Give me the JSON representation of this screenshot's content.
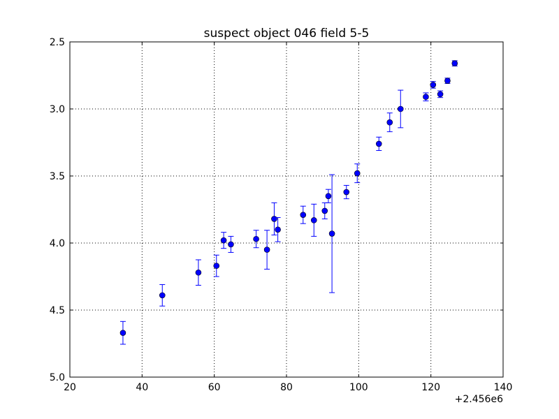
{
  "chart_data": {
    "type": "scatter",
    "title": "suspect object 046 field 5-5",
    "xlabel": "",
    "ylabel": "",
    "x_offset_label": "+2.456e6",
    "xlim": [
      20,
      140
    ],
    "ylim": [
      2.5,
      5.0
    ],
    "y_inverted": true,
    "grid": true,
    "x_ticks": [
      20,
      40,
      60,
      80,
      100,
      120,
      140
    ],
    "x_tick_labels": [
      "20",
      "40",
      "60",
      "80",
      "100",
      "120",
      "140"
    ],
    "y_ticks": [
      2.5,
      3.0,
      3.5,
      4.0,
      4.5,
      5.0
    ],
    "y_tick_labels": [
      "2.5",
      "3.0",
      "3.5",
      "4.0",
      "4.5",
      "5.0"
    ],
    "marker_color": "#0000ff",
    "points": [
      {
        "x": 34.7,
        "y": 4.67,
        "err": 0.085
      },
      {
        "x": 45.6,
        "y": 4.39,
        "err": 0.08
      },
      {
        "x": 55.6,
        "y": 4.22,
        "err": 0.095
      },
      {
        "x": 60.6,
        "y": 4.17,
        "err": 0.08
      },
      {
        "x": 62.6,
        "y": 3.98,
        "err": 0.06
      },
      {
        "x": 64.6,
        "y": 4.01,
        "err": 0.06
      },
      {
        "x": 71.6,
        "y": 3.97,
        "err": 0.065
      },
      {
        "x": 74.6,
        "y": 4.05,
        "err": 0.145
      },
      {
        "x": 76.6,
        "y": 3.82,
        "err": 0.12
      },
      {
        "x": 77.6,
        "y": 3.9,
        "err": 0.09
      },
      {
        "x": 84.6,
        "y": 3.79,
        "err": 0.065
      },
      {
        "x": 87.6,
        "y": 3.83,
        "err": 0.12
      },
      {
        "x": 90.6,
        "y": 3.76,
        "err": 0.06
      },
      {
        "x": 91.6,
        "y": 3.65,
        "err": 0.05
      },
      {
        "x": 92.6,
        "y": 3.93,
        "err": 0.44
      },
      {
        "x": 96.6,
        "y": 3.62,
        "err": 0.05
      },
      {
        "x": 99.6,
        "y": 3.48,
        "err": 0.07
      },
      {
        "x": 105.6,
        "y": 3.26,
        "err": 0.05
      },
      {
        "x": 108.6,
        "y": 3.1,
        "err": 0.07
      },
      {
        "x": 111.6,
        "y": 3.0,
        "err": 0.14
      },
      {
        "x": 118.6,
        "y": 2.91,
        "err": 0.03
      },
      {
        "x": 120.6,
        "y": 2.82,
        "err": 0.025
      },
      {
        "x": 122.6,
        "y": 2.89,
        "err": 0.025
      },
      {
        "x": 124.6,
        "y": 2.79,
        "err": 0.02
      },
      {
        "x": 126.6,
        "y": 2.66,
        "err": 0.02
      }
    ]
  }
}
